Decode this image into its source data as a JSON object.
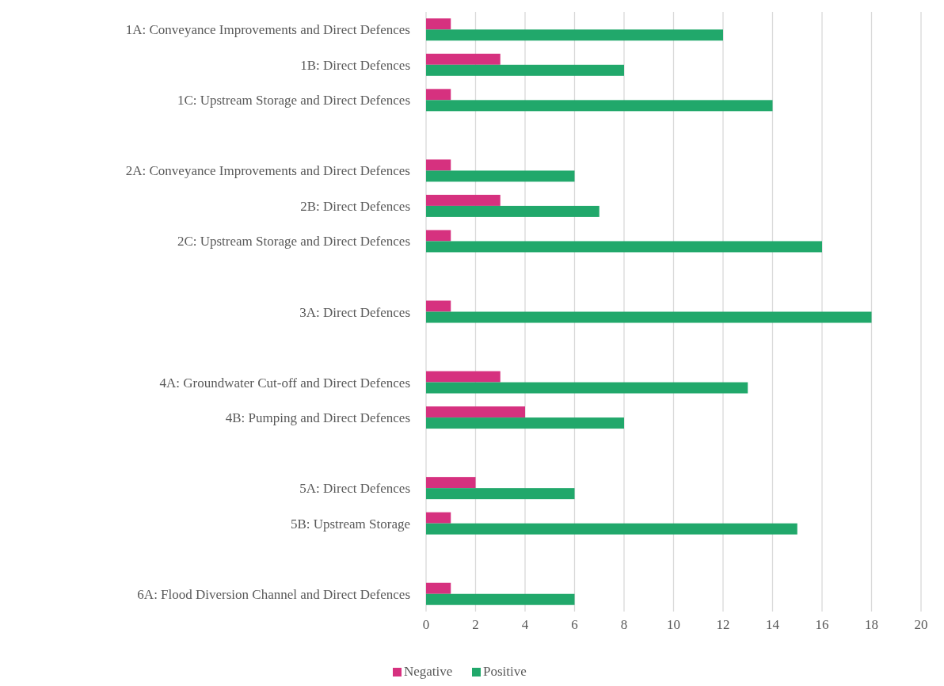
{
  "chart_data": {
    "type": "bar",
    "orientation": "horizontal",
    "categories": [
      "1A: Conveyance Improvements and Direct Defences",
      "1B: Direct Defences",
      "1C: Upstream Storage and Direct Defences",
      null,
      "2A: Conveyance Improvements and Direct Defences",
      "2B: Direct Defences",
      "2C: Upstream Storage and Direct Defences",
      null,
      "3A: Direct Defences",
      null,
      "4A: Groundwater Cut-off and Direct Defences",
      "4B: Pumping and Direct Defences",
      null,
      "5A: Direct Defences",
      "5B: Upstream Storage",
      null,
      "6A: Flood Diversion Channel and Direct Defences"
    ],
    "series": [
      {
        "name": "Negative",
        "color": "#d6317f",
        "values": [
          1,
          3,
          1,
          null,
          1,
          3,
          1,
          null,
          1,
          null,
          3,
          4,
          null,
          2,
          1,
          null,
          1
        ]
      },
      {
        "name": "Positive",
        "color": "#21a86b",
        "values": [
          12,
          8,
          14,
          null,
          6,
          7,
          16,
          null,
          18,
          null,
          13,
          8,
          null,
          6,
          15,
          null,
          6
        ]
      }
    ],
    "xlim": [
      0,
      20
    ],
    "xticks": [
      0,
      2,
      4,
      6,
      8,
      10,
      12,
      14,
      16,
      18,
      20
    ],
    "grid": "x",
    "legend": "bottom"
  }
}
